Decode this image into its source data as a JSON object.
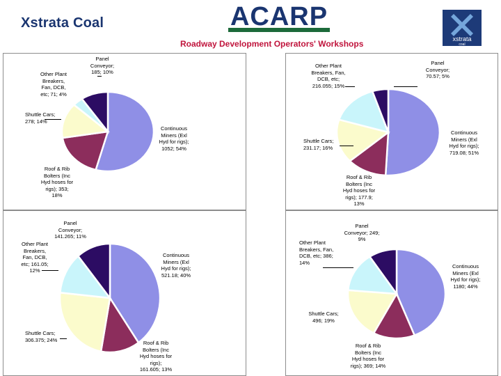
{
  "header": {
    "left_brand": "Xstrata Coal",
    "logo_text": "ACARP",
    "subtitle": "Roadway Development Operators' Workshops",
    "right_brand": "xstrata",
    "right_brand_sub": "coal"
  },
  "colors": {
    "continuous_miners": "#8f8fe6",
    "roof_rib_bolters": "#8c2d5c",
    "shuttle_cars": "#fbfbcc",
    "other_plant": "#c9f5fb",
    "panel_conveyor": "#2c0c63"
  },
  "chart_data": [
    {
      "type": "pie",
      "labels": [
        "Continuous Miners (Exl Hyd for rigs); 1052; 54%",
        "Roof & Rib Bolters (Inc Hyd hoses for rigs); 353; 18%",
        "Shuttle Cars; 278; 14%",
        "Other Plant Breakers, Fan, DCB, etc; 71; 4%",
        "Panel Conveyor; 185; 10%"
      ],
      "values": [
        1052,
        353,
        278,
        71,
        185
      ]
    },
    {
      "type": "pie",
      "labels": [
        "Continuous Miners (Exl Hyd for rigs); 719.08; 51%",
        "Roof & Rib Bolters (Inc Hyd hoses for rigs); 177.9; 13%",
        "Shuttle Cars; 231.17; 16%",
        "Other Plant Breakers, Fan, DCB, etc; 216.055; 15%",
        "Panel Conveyor; 70.57; 5%"
      ],
      "values": [
        719.08,
        177.9,
        231.17,
        216.055,
        70.57
      ]
    },
    {
      "type": "pie",
      "labels": [
        "Continuous Miners (Exl Hyd for rigs); 521.18; 40%",
        "Roof & Rib Bolters (Inc Hyd hoses for rigs); 161.605; 13%",
        "Shuttle Cars; 306.375; 24%",
        "Other Plant Breakers, Fan, DCB, etc; 161.05; 12%",
        "Panel Conveyor; 141.265; 11%"
      ],
      "values": [
        521.18,
        161.605,
        306.375,
        161.05,
        141.265
      ]
    },
    {
      "type": "pie",
      "labels": [
        "Continuous Miners (Exl Hyd for rigs); 1180; 44%",
        "Roof & Rib Bolters (Inc Hyd hoses for rigs); 369; 14%",
        "Shuttle Cars; 496; 19%",
        "Other Plant Breakers, Fan, DCB, etc; 386; 14%",
        "Panel Conveyor; 249; 9%"
      ],
      "values": [
        1180,
        369,
        496,
        386,
        249
      ]
    }
  ]
}
